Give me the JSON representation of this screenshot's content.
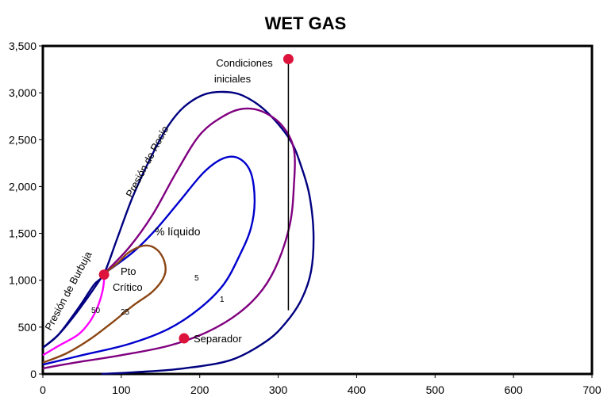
{
  "chart_data": {
    "type": "line",
    "title": "WET GAS",
    "xlim": [
      0,
      700
    ],
    "ylim": [
      0,
      3500
    ],
    "x_ticks": [
      0,
      100,
      200,
      300,
      400,
      500,
      600,
      700
    ],
    "y_ticks": [
      0,
      500,
      1000,
      1500,
      2000,
      2500,
      3000,
      3500
    ],
    "y_tick_labels": [
      "0",
      "500",
      "1,000",
      "1,500",
      "2,000",
      "2,500",
      "3,000",
      "3,500"
    ],
    "series": [
      {
        "name": "Presión de Rocío",
        "color": "#000080",
        "points": [
          [
            0,
            280
          ],
          [
            20,
            420
          ],
          [
            45,
            700
          ],
          [
            65,
            950
          ],
          [
            78,
            1070
          ],
          [
            95,
            1450
          ],
          [
            115,
            1900
          ],
          [
            140,
            2350
          ],
          [
            160,
            2650
          ],
          [
            180,
            2850
          ],
          [
            205,
            2980
          ],
          [
            230,
            3010
          ],
          [
            255,
            2970
          ],
          [
            285,
            2800
          ],
          [
            315,
            2500
          ],
          [
            330,
            2200
          ],
          [
            340,
            1900
          ],
          [
            345,
            1500
          ],
          [
            342,
            1100
          ],
          [
            330,
            800
          ],
          [
            310,
            550
          ],
          [
            285,
            350
          ],
          [
            240,
            150
          ],
          [
            180,
            60
          ],
          [
            120,
            20
          ],
          [
            75,
            0
          ]
        ]
      },
      {
        "name": "Presión de Burbuja",
        "color": "#000080",
        "points": [
          [
            78,
            1070
          ],
          [
            60,
            850
          ],
          [
            40,
            620
          ],
          [
            20,
            420
          ],
          [
            0,
            280
          ]
        ]
      },
      {
        "name": "1",
        "color": "#800080",
        "points": [
          [
            0,
            60
          ],
          [
            40,
            120
          ],
          [
            100,
            200
          ],
          [
            160,
            300
          ],
          [
            210,
            450
          ],
          [
            250,
            650
          ],
          [
            280,
            900
          ],
          [
            300,
            1200
          ],
          [
            315,
            1600
          ],
          [
            320,
            2000
          ],
          [
            320,
            2400
          ],
          [
            305,
            2650
          ],
          [
            280,
            2800
          ],
          [
            255,
            2830
          ],
          [
            230,
            2750
          ],
          [
            200,
            2550
          ],
          [
            170,
            2150
          ],
          [
            140,
            1700
          ],
          [
            110,
            1350
          ],
          [
            78,
            1070
          ]
        ]
      },
      {
        "name": "5",
        "color": "#0000CD",
        "points": [
          [
            0,
            100
          ],
          [
            50,
            200
          ],
          [
            110,
            320
          ],
          [
            160,
            480
          ],
          [
            200,
            700
          ],
          [
            230,
            950
          ],
          [
            250,
            1250
          ],
          [
            265,
            1550
          ],
          [
            270,
            1850
          ],
          [
            265,
            2150
          ],
          [
            250,
            2300
          ],
          [
            230,
            2300
          ],
          [
            205,
            2150
          ],
          [
            175,
            1850
          ],
          [
            145,
            1550
          ],
          [
            115,
            1300
          ],
          [
            78,
            1070
          ]
        ]
      },
      {
        "name": "25",
        "color": "#8B4513",
        "points": [
          [
            0,
            120
          ],
          [
            30,
            220
          ],
          [
            60,
            370
          ],
          [
            90,
            560
          ],
          [
            115,
            730
          ],
          [
            140,
            880
          ],
          [
            155,
            1050
          ],
          [
            155,
            1200
          ],
          [
            145,
            1330
          ],
          [
            130,
            1370
          ],
          [
            110,
            1300
          ],
          [
            95,
            1180
          ],
          [
            78,
            1070
          ]
        ]
      },
      {
        "name": "50",
        "color": "#FF00FF",
        "points": [
          [
            0,
            200
          ],
          [
            20,
            300
          ],
          [
            45,
            420
          ],
          [
            60,
            560
          ],
          [
            70,
            720
          ],
          [
            76,
            880
          ],
          [
            78,
            1000
          ],
          [
            78,
            1070
          ]
        ]
      }
    ],
    "points": [
      {
        "label": "Pto Crítico",
        "x": 78,
        "y": 1060
      },
      {
        "label": "Condiciones iniciales",
        "x": 313,
        "y": 3360
      },
      {
        "label": "Separador",
        "x": 180,
        "y": 380
      }
    ],
    "process_line": {
      "x": 313,
      "y_from": 3360,
      "y_to": 680
    },
    "annotations": {
      "rocio": "Presión de Rocío",
      "burbuja": "Presión de Burbuja",
      "liquido": "% líquido",
      "pto": "Pto",
      "critico": "Crítico",
      "condiciones": "Condiciones",
      "iniciales": "iniciales",
      "separador": "Separador",
      "lbl_50": "50",
      "lbl_25": "25",
      "lbl_5": "5",
      "lbl_1": "1"
    },
    "grid": false
  }
}
